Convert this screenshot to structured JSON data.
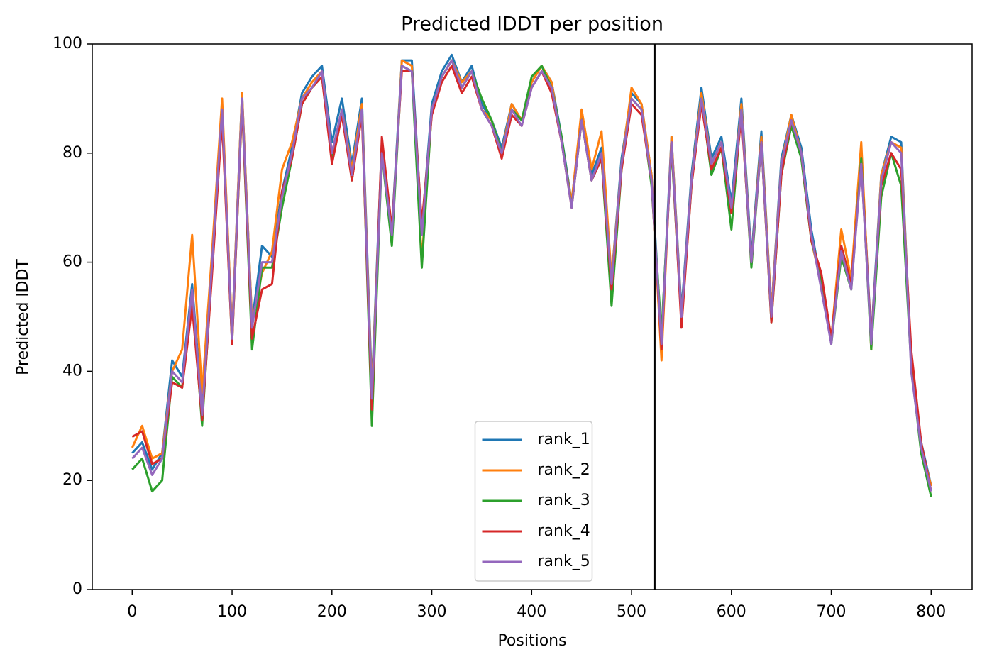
{
  "chart_data": {
    "type": "line",
    "title": "Predicted lDDT per position",
    "xlabel": "Positions",
    "ylabel": "Predicted lDDT",
    "x": [
      0,
      10,
      20,
      30,
      40,
      50,
      60,
      70,
      80,
      90,
      100,
      110,
      120,
      130,
      140,
      150,
      160,
      170,
      180,
      190,
      200,
      210,
      220,
      230,
      240,
      250,
      260,
      270,
      280,
      290,
      300,
      310,
      320,
      330,
      340,
      350,
      360,
      370,
      380,
      390,
      400,
      410,
      420,
      430,
      440,
      450,
      460,
      470,
      480,
      490,
      500,
      510,
      520,
      530,
      540,
      550,
      560,
      570,
      580,
      590,
      600,
      610,
      620,
      630,
      640,
      650,
      660,
      670,
      680,
      690,
      700,
      710,
      720,
      730,
      740,
      750,
      760,
      770,
      780,
      790,
      800
    ],
    "series": [
      {
        "name": "rank_1",
        "color": "#1f77b4",
        "values": [
          25,
          27,
          22,
          25,
          42,
          39,
          56,
          33,
          61,
          89,
          47,
          91,
          49,
          63,
          61,
          73,
          81,
          91,
          94,
          96,
          82,
          90,
          78,
          90,
          37,
          82,
          66,
          97,
          97,
          66,
          89,
          95,
          98,
          93,
          96,
          89,
          86,
          81,
          89,
          86,
          93,
          96,
          93,
          83,
          71,
          87,
          76,
          81,
          57,
          79,
          91,
          89,
          76,
          46,
          83,
          51,
          76,
          92,
          79,
          83,
          71,
          90,
          61,
          84,
          51,
          79,
          87,
          81,
          66,
          56,
          46,
          63,
          56,
          80,
          46,
          76,
          83,
          82,
          41,
          27,
          19
        ]
      },
      {
        "name": "rank_2",
        "color": "#ff7f0e",
        "values": [
          26,
          30,
          24,
          25,
          40,
          44,
          65,
          36,
          62,
          90,
          47,
          91,
          49,
          58,
          62,
          77,
          82,
          90,
          93,
          95,
          80,
          88,
          77,
          89,
          36,
          81,
          64,
          97,
          96,
          60,
          88,
          94,
          97,
          93,
          95,
          88,
          86,
          80,
          89,
          86,
          93,
          96,
          93,
          82,
          71,
          88,
          77,
          84,
          57,
          78,
          92,
          89,
          76,
          42,
          83,
          50,
          75,
          91,
          78,
          82,
          69,
          89,
          60,
          83,
          51,
          78,
          87,
          80,
          64,
          56,
          46,
          66,
          57,
          82,
          44,
          76,
          82,
          81,
          41,
          26,
          19
        ]
      },
      {
        "name": "rank_3",
        "color": "#2ca02c",
        "values": [
          22,
          24,
          18,
          20,
          39,
          37,
          54,
          30,
          59,
          87,
          45,
          89,
          44,
          59,
          59,
          70,
          79,
          89,
          92,
          94,
          79,
          88,
          75,
          88,
          30,
          80,
          63,
          96,
          95,
          59,
          88,
          94,
          97,
          92,
          95,
          90,
          86,
          80,
          88,
          86,
          94,
          96,
          92,
          83,
          70,
          86,
          75,
          79,
          52,
          77,
          90,
          88,
          74,
          47,
          81,
          49,
          74,
          90,
          76,
          81,
          66,
          88,
          59,
          82,
          49,
          76,
          85,
          79,
          64,
          57,
          45,
          61,
          55,
          79,
          44,
          72,
          80,
          74,
          41,
          25,
          17
        ]
      },
      {
        "name": "rank_4",
        "color": "#d62728",
        "values": [
          28,
          29,
          23,
          24,
          38,
          37,
          52,
          31,
          58,
          86,
          45,
          89,
          46,
          55,
          56,
          73,
          79,
          89,
          92,
          94,
          78,
          87,
          75,
          87,
          33,
          83,
          66,
          95,
          95,
          67,
          87,
          93,
          96,
          91,
          94,
          88,
          85,
          79,
          87,
          85,
          92,
          95,
          91,
          82,
          70,
          86,
          75,
          79,
          55,
          77,
          89,
          87,
          75,
          44,
          82,
          48,
          74,
          89,
          77,
          81,
          69,
          87,
          60,
          82,
          49,
          76,
          86,
          80,
          64,
          58,
          46,
          63,
          56,
          78,
          46,
          74,
          80,
          77,
          44,
          27,
          18
        ]
      },
      {
        "name": "rank_5",
        "color": "#9467bd",
        "values": [
          24,
          26,
          21,
          24,
          40,
          38,
          55,
          32,
          60,
          88,
          46,
          90,
          48,
          60,
          60,
          72,
          80,
          90,
          92,
          95,
          80,
          88,
          76,
          88,
          35,
          80,
          65,
          96,
          95,
          65,
          88,
          94,
          97,
          92,
          95,
          88,
          85,
          80,
          88,
          85,
          92,
          95,
          92,
          82,
          70,
          86,
          75,
          80,
          56,
          78,
          90,
          88,
          75,
          45,
          82,
          50,
          75,
          90,
          78,
          82,
          70,
          88,
          60,
          82,
          50,
          78,
          86,
          80,
          65,
          55,
          45,
          62,
          55,
          78,
          45,
          75,
          82,
          80,
          40,
          26,
          18
        ]
      }
    ],
    "vlines": [
      523
    ],
    "vline_color": "#000000",
    "xlim": [
      -40,
      841
    ],
    "xticks": [
      0,
      100,
      200,
      300,
      400,
      500,
      600,
      700,
      800
    ],
    "ylim": [
      0,
      100
    ],
    "yticks": [
      0,
      20,
      40,
      60,
      80,
      100
    ],
    "legend": "lower center"
  }
}
